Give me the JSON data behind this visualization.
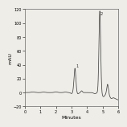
{
  "title": "",
  "xlabel": "Minutes",
  "ylabel": "mAU",
  "xlim": [
    0,
    6
  ],
  "ylim": [
    -20,
    120
  ],
  "yticks": [
    -20,
    0,
    20,
    40,
    60,
    80,
    100,
    120
  ],
  "xticks": [
    0,
    1,
    2,
    3,
    4,
    5,
    6
  ],
  "peak1_x": 3.22,
  "peak1_y": 35,
  "peak1_label": "1",
  "peak2_x": 4.82,
  "peak2_y": 118,
  "peak2_label": "2",
  "peak3_x": 5.32,
  "peak3_y": 15,
  "line_color": "#444444",
  "background_color": "#eeede8",
  "axes_background": "#eeede8",
  "font_size": 4.0,
  "label_font_size": 4.5
}
